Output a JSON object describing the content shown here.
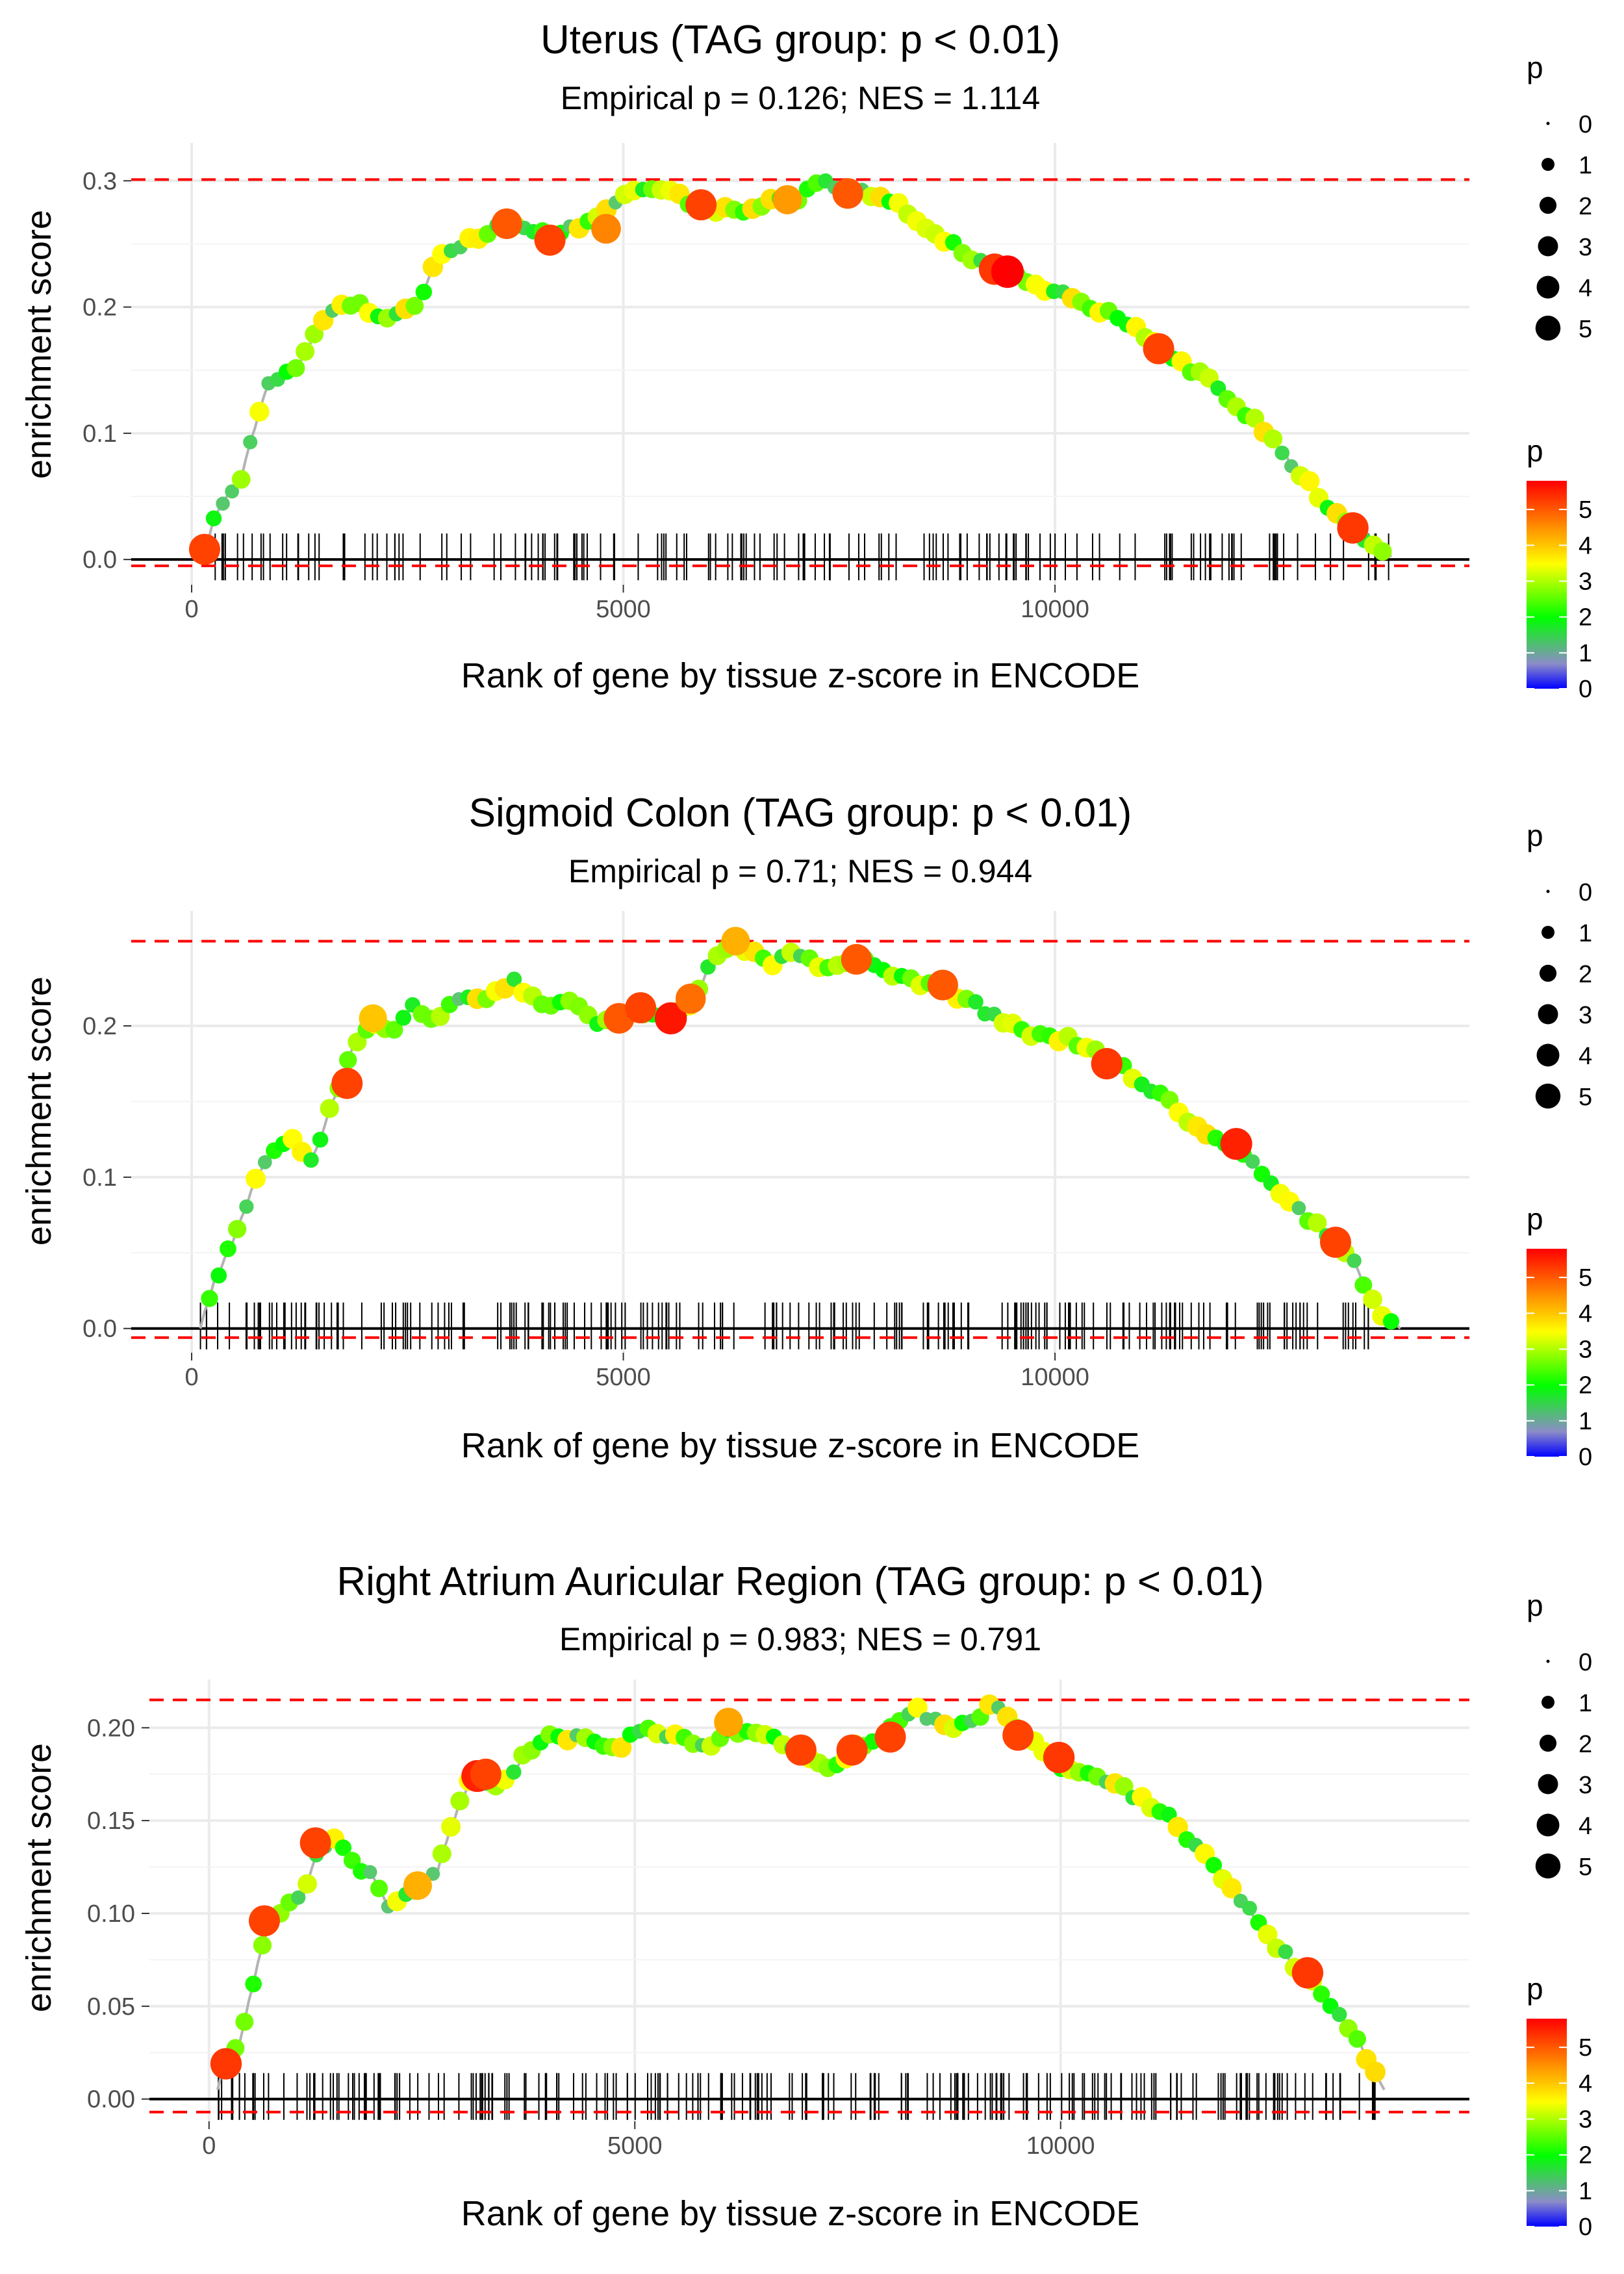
{
  "chart_data": [
    {
      "type": "line",
      "title": "Uterus (TAG group: p < 0.01)",
      "subtitle": "Empirical p = 0.126; NES = 1.114",
      "xlabel": "Rank of gene by tissue z-score in ENCODE",
      "ylabel": "enrichment score",
      "xlim": [
        -700,
        14800
      ],
      "ylim": [
        -0.02,
        0.33
      ],
      "xticks": [
        0,
        5000,
        10000
      ],
      "xtick_labels": [
        "0",
        "5000",
        "10000"
      ],
      "yticks": [
        0.0,
        0.1,
        0.2,
        0.3
      ],
      "ytick_labels": [
        "0.0",
        "0.1",
        "0.2",
        "0.3"
      ],
      "max_es": 0.301,
      "min_es": -0.005,
      "curve": [
        [
          150,
          0.005
        ],
        [
          300,
          0.04
        ],
        [
          550,
          0.06
        ],
        [
          700,
          0.1
        ],
        [
          900,
          0.14
        ],
        [
          1200,
          0.15
        ],
        [
          1500,
          0.19
        ],
        [
          1750,
          0.2
        ],
        [
          2000,
          0.2
        ],
        [
          2250,
          0.19
        ],
        [
          2600,
          0.2
        ],
        [
          2900,
          0.245
        ],
        [
          3300,
          0.255
        ],
        [
          3650,
          0.265
        ],
        [
          4000,
          0.26
        ],
        [
          4300,
          0.26
        ],
        [
          4600,
          0.265
        ],
        [
          5000,
          0.29
        ],
        [
          5400,
          0.295
        ],
        [
          5900,
          0.28
        ],
        [
          6300,
          0.275
        ],
        [
          6700,
          0.285
        ],
        [
          7000,
          0.28
        ],
        [
          7250,
          0.3
        ],
        [
          7600,
          0.29
        ],
        [
          8000,
          0.29
        ],
        [
          8600,
          0.26
        ],
        [
          9100,
          0.235
        ],
        [
          9450,
          0.228
        ],
        [
          9900,
          0.215
        ],
        [
          10300,
          0.205
        ],
        [
          10800,
          0.19
        ],
        [
          11300,
          0.165
        ],
        [
          11800,
          0.14
        ],
        [
          12300,
          0.11
        ],
        [
          12700,
          0.08
        ],
        [
          13200,
          0.04
        ],
        [
          13500,
          0.02
        ],
        [
          13900,
          0.003
        ]
      ],
      "highlights": [
        [
          150,
          0.008,
          5.2
        ],
        [
          3650,
          0.266,
          5.0
        ],
        [
          4150,
          0.253,
          5.2
        ],
        [
          4800,
          0.262,
          4.6
        ],
        [
          5900,
          0.281,
          5.2
        ],
        [
          6900,
          0.285,
          4.4
        ],
        [
          7600,
          0.29,
          5.0
        ],
        [
          9300,
          0.23,
          5.3
        ],
        [
          9450,
          0.228,
          5.8
        ],
        [
          11200,
          0.167,
          5.2
        ],
        [
          13450,
          0.025,
          5.3
        ]
      ],
      "hits_n": 160,
      "hits_range": [
        150,
        13900
      ],
      "hits_seed": 11
    },
    {
      "type": "line",
      "title": "Sigmoid Colon (TAG group: p < 0.01)",
      "subtitle": "Empirical p = 0.71; NES = 0.944",
      "xlabel": "Rank of gene by tissue z-score in ENCODE",
      "ylabel": "enrichment score",
      "xlim": [
        -700,
        14800
      ],
      "ylim": [
        -0.016,
        0.276
      ],
      "xticks": [
        0,
        5000,
        10000
      ],
      "xtick_labels": [
        "0",
        "5000",
        "10000"
      ],
      "yticks": [
        0.0,
        0.1,
        0.2
      ],
      "ytick_labels": [
        "0.0",
        "0.1",
        "0.2"
      ],
      "max_es": 0.256,
      "min_es": -0.006,
      "curve": [
        [
          100,
          0.0
        ],
        [
          250,
          0.03
        ],
        [
          500,
          0.06
        ],
        [
          750,
          0.1
        ],
        [
          1000,
          0.12
        ],
        [
          1200,
          0.125
        ],
        [
          1400,
          0.11
        ],
        [
          1700,
          0.16
        ],
        [
          1900,
          0.19
        ],
        [
          2100,
          0.205
        ],
        [
          2350,
          0.195
        ],
        [
          2600,
          0.215
        ],
        [
          2800,
          0.2
        ],
        [
          3100,
          0.22
        ],
        [
          3400,
          0.215
        ],
        [
          3700,
          0.23
        ],
        [
          4000,
          0.215
        ],
        [
          4400,
          0.215
        ],
        [
          4700,
          0.2
        ],
        [
          5000,
          0.205
        ],
        [
          5200,
          0.21
        ],
        [
          5500,
          0.205
        ],
        [
          5800,
          0.215
        ],
        [
          6000,
          0.24
        ],
        [
          6300,
          0.255
        ],
        [
          6700,
          0.24
        ],
        [
          7000,
          0.25
        ],
        [
          7300,
          0.235
        ],
        [
          7700,
          0.245
        ],
        [
          8100,
          0.235
        ],
        [
          8700,
          0.225
        ],
        [
          9200,
          0.21
        ],
        [
          9700,
          0.195
        ],
        [
          10200,
          0.19
        ],
        [
          10700,
          0.175
        ],
        [
          11200,
          0.155
        ],
        [
          11700,
          0.13
        ],
        [
          12100,
          0.12
        ],
        [
          12600,
          0.09
        ],
        [
          13000,
          0.07
        ],
        [
          13400,
          0.05
        ],
        [
          13700,
          0.015
        ],
        [
          14000,
          0.0
        ]
      ],
      "highlights": [
        [
          1800,
          0.162,
          5.2
        ],
        [
          2100,
          0.205,
          4.0
        ],
        [
          4950,
          0.205,
          5.0
        ],
        [
          5200,
          0.212,
          5.2
        ],
        [
          5550,
          0.205,
          5.6
        ],
        [
          5780,
          0.218,
          4.8
        ],
        [
          6300,
          0.256,
          4.2
        ],
        [
          7700,
          0.244,
          5.0
        ],
        [
          8700,
          0.227,
          5.0
        ],
        [
          10600,
          0.175,
          5.3
        ],
        [
          12100,
          0.122,
          5.5
        ],
        [
          13250,
          0.057,
          5.2
        ]
      ],
      "hits_n": 210,
      "hits_range": [
        100,
        13700
      ],
      "hits_seed": 23
    },
    {
      "type": "line",
      "title": "Right Atrium Auricular Region (TAG group: p < 0.01)",
      "subtitle": "Empirical p = 0.983; NES = 0.791",
      "xlabel": "Rank of gene by tissue z-score in ENCODE",
      "ylabel": "enrichment score",
      "xlim": [
        -700,
        14800
      ],
      "ylim": [
        -0.012,
        0.226
      ],
      "xticks": [
        0,
        5000,
        10000
      ],
      "xtick_labels": [
        "0",
        "5000",
        "10000"
      ],
      "yticks": [
        0.0,
        0.05,
        0.1,
        0.15,
        0.2
      ],
      "ytick_labels": [
        "0.00",
        "0.05",
        "0.10",
        "0.15",
        "0.20"
      ],
      "max_es": 0.215,
      "min_es": -0.007,
      "curve": [
        [
          100,
          0.005
        ],
        [
          200,
          0.02
        ],
        [
          350,
          0.03
        ],
        [
          500,
          0.06
        ],
        [
          700,
          0.095
        ],
        [
          900,
          0.105
        ],
        [
          1100,
          0.11
        ],
        [
          1300,
          0.135
        ],
        [
          1500,
          0.14
        ],
        [
          1700,
          0.125
        ],
        [
          1900,
          0.12
        ],
        [
          2100,
          0.105
        ],
        [
          2300,
          0.11
        ],
        [
          2500,
          0.115
        ],
        [
          2700,
          0.125
        ],
        [
          2900,
          0.155
        ],
        [
          3100,
          0.175
        ],
        [
          3300,
          0.17
        ],
        [
          3500,
          0.17
        ],
        [
          3700,
          0.185
        ],
        [
          4000,
          0.195
        ],
        [
          4400,
          0.195
        ],
        [
          4800,
          0.19
        ],
        [
          5100,
          0.2
        ],
        [
          5500,
          0.195
        ],
        [
          5900,
          0.19
        ],
        [
          6100,
          0.2
        ],
        [
          6500,
          0.195
        ],
        [
          6900,
          0.19
        ],
        [
          7300,
          0.175
        ],
        [
          7600,
          0.19
        ],
        [
          7900,
          0.195
        ],
        [
          8300,
          0.21
        ],
        [
          8700,
          0.2
        ],
        [
          9000,
          0.205
        ],
        [
          9200,
          0.215
        ],
        [
          9600,
          0.195
        ],
        [
          10000,
          0.18
        ],
        [
          10400,
          0.175
        ],
        [
          10800,
          0.165
        ],
        [
          11200,
          0.155
        ],
        [
          11600,
          0.135
        ],
        [
          12000,
          0.115
        ],
        [
          12400,
          0.09
        ],
        [
          12800,
          0.07
        ],
        [
          13200,
          0.05
        ],
        [
          13500,
          0.03
        ],
        [
          13800,
          0.005
        ]
      ],
      "highlights": [
        [
          200,
          0.019,
          5.3
        ],
        [
          650,
          0.096,
          5.2
        ],
        [
          1250,
          0.138,
          5.2
        ],
        [
          2450,
          0.115,
          4.2
        ],
        [
          3150,
          0.174,
          5.5
        ],
        [
          3250,
          0.175,
          5.2
        ],
        [
          6100,
          0.203,
          4.3
        ],
        [
          6950,
          0.188,
          5.2
        ],
        [
          7550,
          0.188,
          5.2
        ],
        [
          8000,
          0.195,
          5.2
        ],
        [
          9500,
          0.196,
          5.2
        ],
        [
          9980,
          0.184,
          5.3
        ],
        [
          12900,
          0.068,
          5.3
        ]
      ],
      "hits_n": 220,
      "hits_range": [
        100,
        13800
      ],
      "hits_seed": 37
    }
  ],
  "legend": {
    "size_title": "p",
    "size_values": [
      "0",
      "1",
      "2",
      "3",
      "4",
      "5"
    ],
    "color_title": "p",
    "color_values": [
      "0",
      "1",
      "2",
      "3",
      "4",
      "5"
    ],
    "color_min": 0,
    "color_max": 5.8
  },
  "colors": {
    "curve": "#b3b3b3",
    "dashed": "#ff0000",
    "zero_line": "#000000",
    "hits": "#000000",
    "grid": "#ebebeb",
    "gradient": [
      "#0000ff",
      "#9e9ec4",
      "#00ff00",
      "#ffff00",
      "#ff8000",
      "#ff0000"
    ]
  }
}
